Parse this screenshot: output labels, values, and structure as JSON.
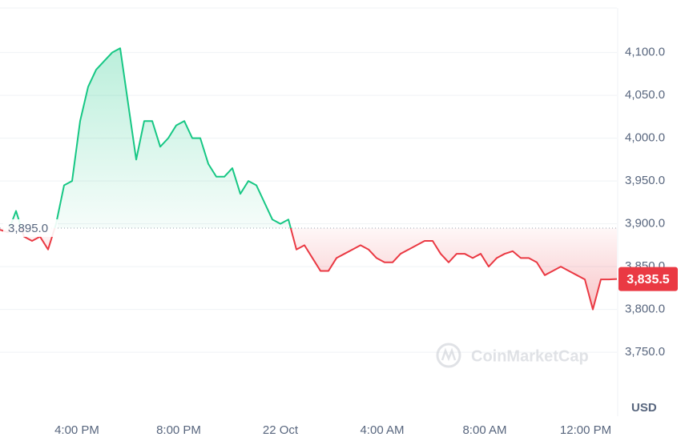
{
  "chart_data": {
    "type": "line",
    "series": [
      {
        "name": null,
        "color_up": "#16c784",
        "color_down": "#ea3943",
        "values": [
          3893,
          3890,
          3915,
          3885,
          3880,
          3885,
          3870,
          3900,
          3945,
          3950,
          4020,
          4060,
          4080,
          4090,
          4100,
          4105,
          4040,
          3975,
          4020,
          4020,
          3990,
          4000,
          4015,
          4020,
          4000,
          4000,
          3970,
          3955,
          3955,
          3965,
          3935,
          3950,
          3945,
          3925,
          3905,
          3900,
          3905,
          3870,
          3875,
          3860,
          3845,
          3845,
          3860,
          3865,
          3870,
          3875,
          3870,
          3860,
          3855,
          3855,
          3865,
          3870,
          3875,
          3880,
          3880,
          3865,
          3855,
          3865,
          3865,
          3860,
          3865,
          3850,
          3860,
          3865,
          3868,
          3860,
          3860,
          3855,
          3840,
          3845,
          3850,
          3845,
          3840,
          3835,
          3800,
          3835,
          3835,
          3835.5
        ]
      }
    ],
    "xlim": [
      0,
      77
    ],
    "xticks": [
      {
        "value": 9.6,
        "label": "4:00 PM"
      },
      {
        "value": 22.3,
        "label": "8:00 PM"
      },
      {
        "value": 35,
        "label": "22 Oct"
      },
      {
        "value": 47.7,
        "label": "4:00 AM"
      },
      {
        "value": 60.5,
        "label": "8:00 AM"
      },
      {
        "value": 73.1,
        "label": "12:00 PM"
      }
    ],
    "ylim": [
      3680,
      4152
    ],
    "yticks": [
      {
        "value": 3750,
        "label": "3,750.0"
      },
      {
        "value": 3800,
        "label": "3,800.0"
      },
      {
        "value": 3850,
        "label": "3,850.0"
      },
      {
        "value": 3900,
        "label": "3,900.0"
      },
      {
        "value": 3950,
        "label": "3,950.0"
      },
      {
        "value": 4000,
        "label": "4,000.0"
      },
      {
        "value": 4050,
        "label": "4,050.0"
      },
      {
        "value": 4100,
        "label": "4,100.0"
      }
    ],
    "baseline": {
      "value": 3895,
      "label": "3,895.0"
    },
    "last_price": {
      "value": 3835.5,
      "label": "3,835.5"
    },
    "currency": "USD",
    "watermark": "CoinMarketCap",
    "grid": true
  }
}
